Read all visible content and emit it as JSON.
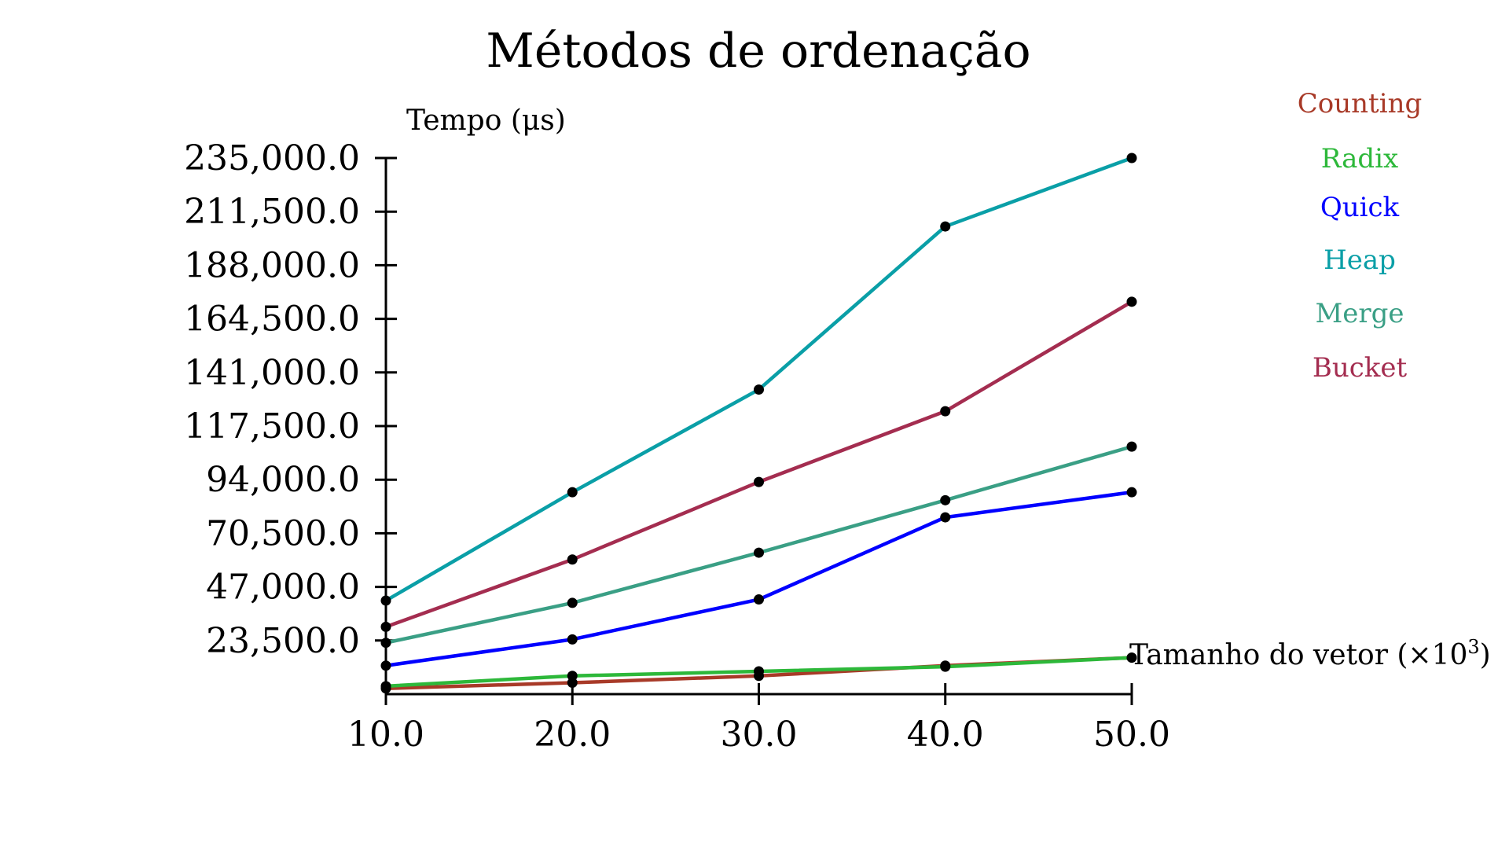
{
  "chart_data": {
    "type": "line",
    "title": "Métodos de ordenação",
    "ylabel": "Tempo (μs)",
    "xlabel_prefix": "Tamanho do vetor (×10",
    "xlabel_exponent": "3",
    "xlabel_suffix": ")",
    "x": [
      10,
      20,
      30,
      40,
      50
    ],
    "x_tick_labels": [
      "10.0",
      "20.0",
      "30.0",
      "40.0",
      "50.0"
    ],
    "y_ticks": [
      23500,
      47000,
      70500,
      94000,
      117500,
      141000,
      164500,
      188000,
      211500,
      235000
    ],
    "y_tick_labels": [
      "23,500.0",
      "47,000.0",
      "70,500.0",
      "94,000.0",
      "117,500.0",
      "141,000.0",
      "164,500.0",
      "188,000.0",
      "211,500.0",
      "235,000.0"
    ],
    "xlim": [
      10,
      50
    ],
    "ylim": [
      0,
      235000
    ],
    "grid": false,
    "legend_position": "top-right",
    "series": [
      {
        "name": "Counting",
        "color": "#a83a28",
        "values": [
          2500,
          5000,
          8000,
          12500,
          16000
        ]
      },
      {
        "name": "Radix",
        "color": "#2db83a",
        "values": [
          3500,
          8000,
          10000,
          12000,
          16000
        ]
      },
      {
        "name": "Quick",
        "color": "#0000ff",
        "values": [
          12500,
          24000,
          41500,
          77500,
          88500
        ]
      },
      {
        "name": "Heap",
        "color": "#0a9fa7",
        "values": [
          41000,
          88500,
          133500,
          205000,
          235000
        ]
      },
      {
        "name": "Merge",
        "color": "#3a9f85",
        "values": [
          22500,
          40000,
          62000,
          85000,
          108500
        ]
      },
      {
        "name": "Bucket",
        "color": "#a42d50",
        "values": [
          29500,
          59000,
          93000,
          124000,
          172000
        ]
      }
    ]
  }
}
